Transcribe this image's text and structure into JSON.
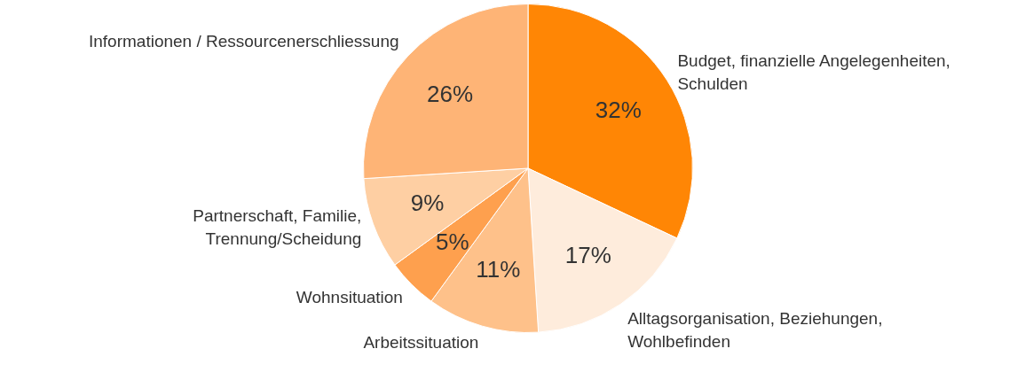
{
  "chart_data": {
    "type": "pie",
    "categories": [
      "Budget, finanzielle Angelegenheiten,\nSchulden",
      "Alltagsorganisation, Beziehungen,\nWohlbefinden",
      "Arbeitssituation",
      "Wohnsituation",
      "Partnerschaft, Familie,\nTrennung/Scheidung",
      "Informationen / Ressourcenerschliessung"
    ],
    "values": [
      32,
      17,
      11,
      5,
      9,
      26
    ],
    "value_labels": [
      "32%",
      "17%",
      "11%",
      "5%",
      "9%",
      "26%"
    ],
    "colors": [
      "#ff8605",
      "#feecdc",
      "#fec18a",
      "#fea04e",
      "#fecfa3",
      "#feb476"
    ],
    "legend": false
  }
}
